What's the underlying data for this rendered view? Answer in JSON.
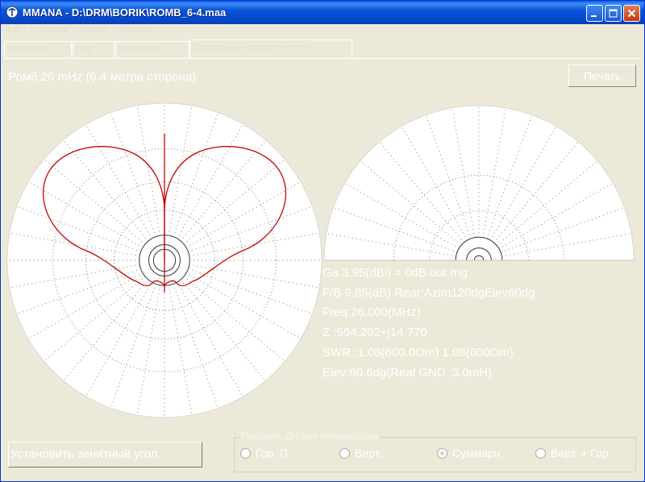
{
  "window": {
    "title": "MMANA - D:\\DRM\\BORIK\\ROMB_6-4.maa",
    "icon": "mmana-app-icon",
    "controls": [
      "minimize-icon",
      "maximize-icon",
      "close-icon"
    ]
  },
  "menu": {
    "items": [
      "Файл",
      "Правка",
      "Сервис",
      "Помощь"
    ]
  },
  "tabs": [
    {
      "label": "Геометрия"
    },
    {
      "label": "Вид"
    },
    {
      "label": "Вычислить"
    },
    {
      "label": "Диаграммы направленности",
      "active": true
    }
  ],
  "panel": {
    "heading": "Ромб 26 mHz (6.4 метра сторона)",
    "print_label": "Печать"
  },
  "results": {
    "ga": "Ga   3.95(dBi) = 0dB  out.rng",
    "fb": "F/B  9.85(dB) Rear:Azim120dgElev60dg",
    "freq": "Freq:26.000(MHz)",
    "z": "Z   :594.202+j14.770",
    "swr": "SWR :1.08(600.0Om) 1.08(600Om)",
    "elev": "Elev:60.6dg(Real GND :3.0mH)"
  },
  "zenith_button": {
    "label": "Установить зенитный угол"
  },
  "polarization": {
    "legend": "Показать ДН для поляризации",
    "options": [
      {
        "label": "Гор. П",
        "checked": false
      },
      {
        "label": "Верт.",
        "checked": false
      },
      {
        "label": "Суммарн.",
        "checked": true
      },
      {
        "label": "Верт. + Гор.",
        "checked": false
      }
    ]
  },
  "colors": {
    "pattern_line": "#cc0000",
    "plot_background": "#ffffff",
    "grid": "#808080",
    "title_bar": "#0a53d9"
  }
}
